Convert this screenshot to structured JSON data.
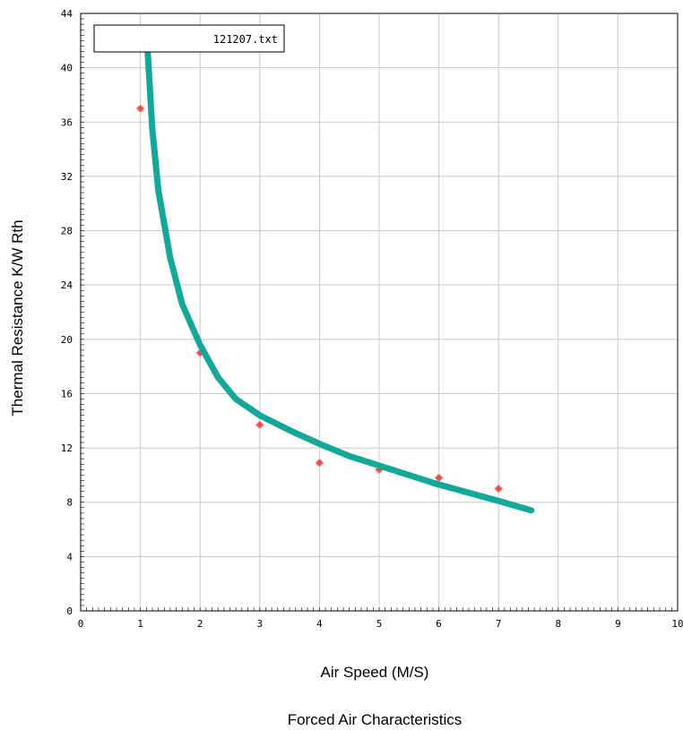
{
  "chart_data": {
    "type": "scatter",
    "title": "Forced Air Characteristics",
    "xlabel": "Air Speed  (M/S)",
    "ylabel": "Thermal Resistance  K/W Rth",
    "legend": "121207.txt",
    "legend_placement": "top-left",
    "grid": true,
    "xlim": [
      0,
      10
    ],
    "ylim": [
      0,
      44
    ],
    "x_ticks": [
      "0",
      "1",
      "2",
      "3",
      "4",
      "5",
      "6",
      "7",
      "8",
      "9",
      "10"
    ],
    "y_ticks": [
      "0",
      "4",
      "8",
      "12",
      "16",
      "20",
      "24",
      "28",
      "32",
      "36",
      "40",
      "44"
    ],
    "series": [
      {
        "kind": "points",
        "color": "#e8504f",
        "x": [
          1,
          1,
          2,
          3,
          4,
          5,
          6,
          7
        ],
        "y": [
          42.2,
          37.0,
          19.0,
          13.7,
          10.9,
          10.4,
          9.8,
          9.0
        ]
      },
      {
        "kind": "fitted-curve",
        "color": "#14a89b",
        "x": [
          1.1,
          1.2,
          1.3,
          1.5,
          1.7,
          2.0,
          2.3,
          2.6,
          3.0,
          3.5,
          4.0,
          4.5,
          5.0,
          5.5,
          6.0,
          6.5,
          7.0,
          7.55
        ],
        "y": [
          42.8,
          35.5,
          31.0,
          26.0,
          22.6,
          19.6,
          17.2,
          15.6,
          14.4,
          13.3,
          12.3,
          11.4,
          10.7,
          10.0,
          9.3,
          8.7,
          8.1,
          7.4
        ]
      }
    ]
  }
}
